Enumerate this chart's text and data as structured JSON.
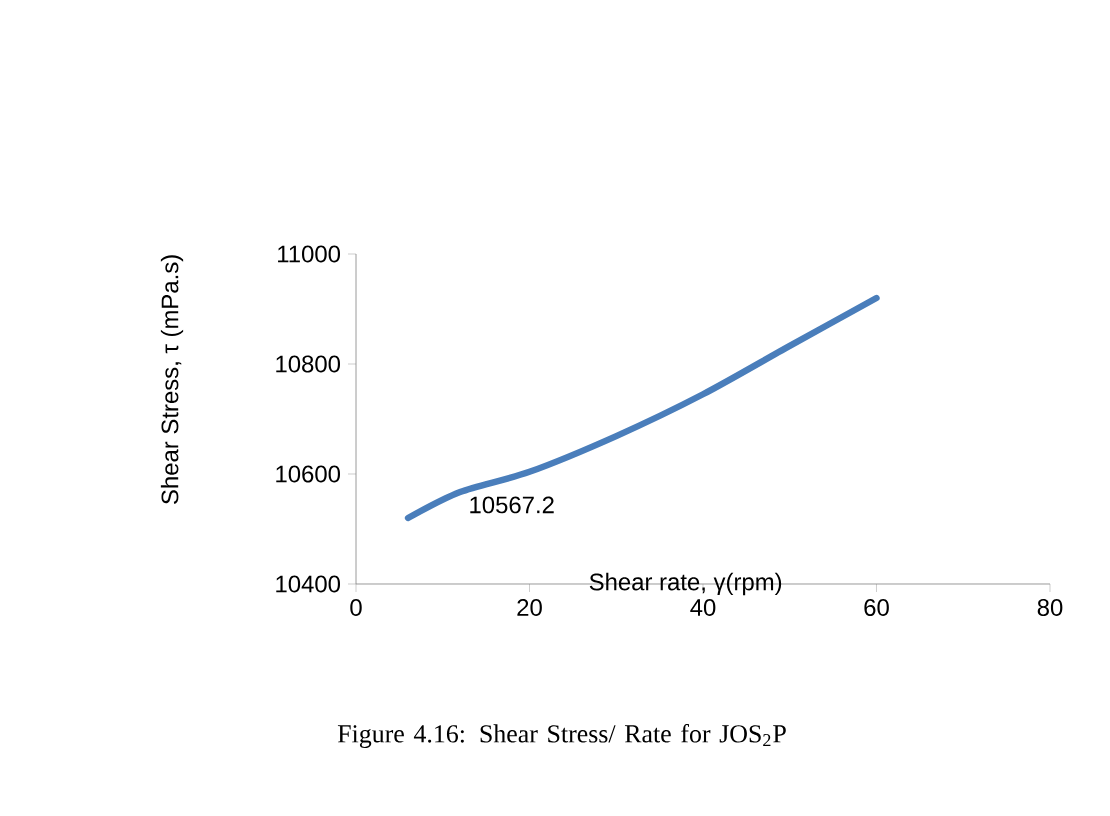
{
  "chart_data": {
    "type": "line",
    "xlabel": "Shear rate, γ(rpm)",
    "ylabel": "Shear Stress, τ (mPa.s)",
    "annotations": [
      "Figure 4.16: Shear Stress/ Rate for JOS$_{2}$P"
    ],
    "x": [
      6,
      12,
      20,
      30,
      40,
      50,
      60
    ],
    "series": [
      {
        "color": "#4a7ebb",
        "values": [
          10520,
          10567.2,
          10604,
          10669,
          10745,
          10833,
          10920
        ],
        "value_labels": [
          null,
          "10567.2",
          null,
          null,
          null,
          null,
          null
        ]
      }
    ],
    "xlim": [
      0,
      80
    ],
    "xticks": [
      0,
      20,
      40,
      60,
      80
    ],
    "ylim": [
      10400,
      11000
    ],
    "yticks": [
      10400,
      10600,
      10800,
      11000
    ],
    "grid": false,
    "marker": "none",
    "line_style": "solid"
  }
}
